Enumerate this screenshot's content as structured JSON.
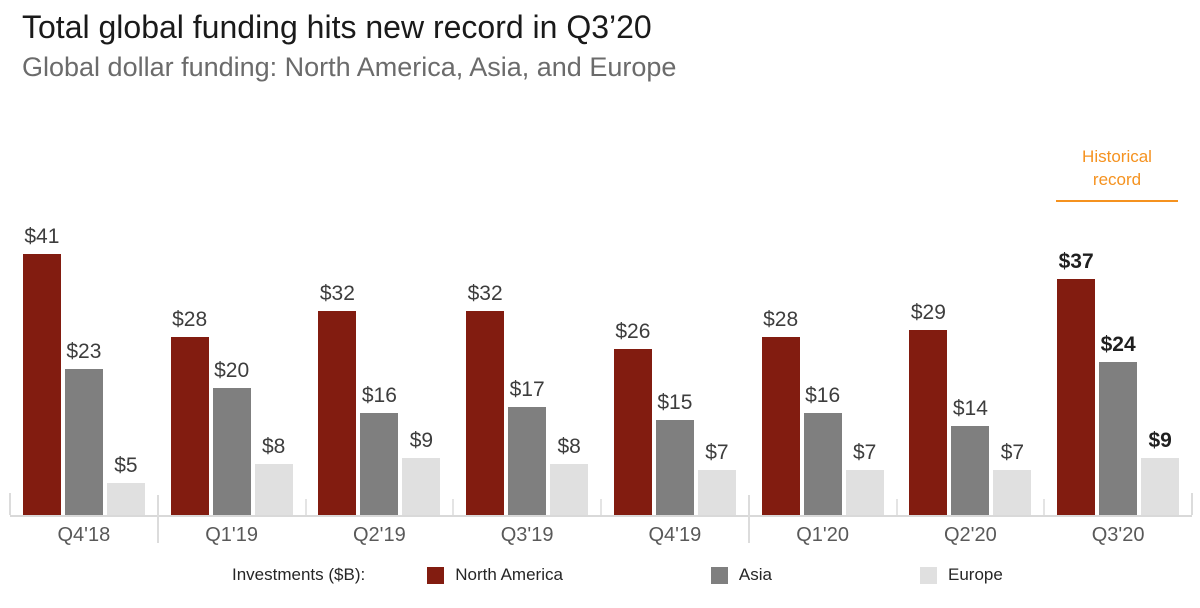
{
  "header": {
    "title": "Total global funding hits new record in Q3’20",
    "subtitle": "Global dollar funding: North America, Asia, and Europe"
  },
  "annotation": {
    "label": "Historical record",
    "color": "#F5921F"
  },
  "chart_data": {
    "type": "bar",
    "title": "Total global funding hits new record in Q3’20",
    "xlabel": "",
    "ylabel": "Investments ($B)",
    "ylim": [
      0,
      45
    ],
    "grid": false,
    "legend_position": "bottom",
    "value_prefix": "$",
    "categories": [
      "Q4'18",
      "Q1'19",
      "Q2'19",
      "Q3'19",
      "Q4'19",
      "Q1'20",
      "Q2'20",
      "Q3'20"
    ],
    "series": [
      {
        "name": "North America",
        "color": "#821c10",
        "values": [
          41,
          28,
          32,
          32,
          26,
          28,
          29,
          37
        ]
      },
      {
        "name": "Asia",
        "color": "#7f7f7f",
        "values": [
          23,
          20,
          16,
          17,
          15,
          16,
          14,
          24
        ]
      },
      {
        "name": "Europe",
        "color": "#e0e0e0",
        "values": [
          5,
          8,
          9,
          8,
          7,
          7,
          7,
          9
        ]
      }
    ],
    "emphasized_category": "Q3'20",
    "year_separators_after_index": [
      0,
      4
    ]
  },
  "legend": {
    "title": "Investments ($B):",
    "items": [
      "North America",
      "Asia",
      "Europe"
    ]
  }
}
